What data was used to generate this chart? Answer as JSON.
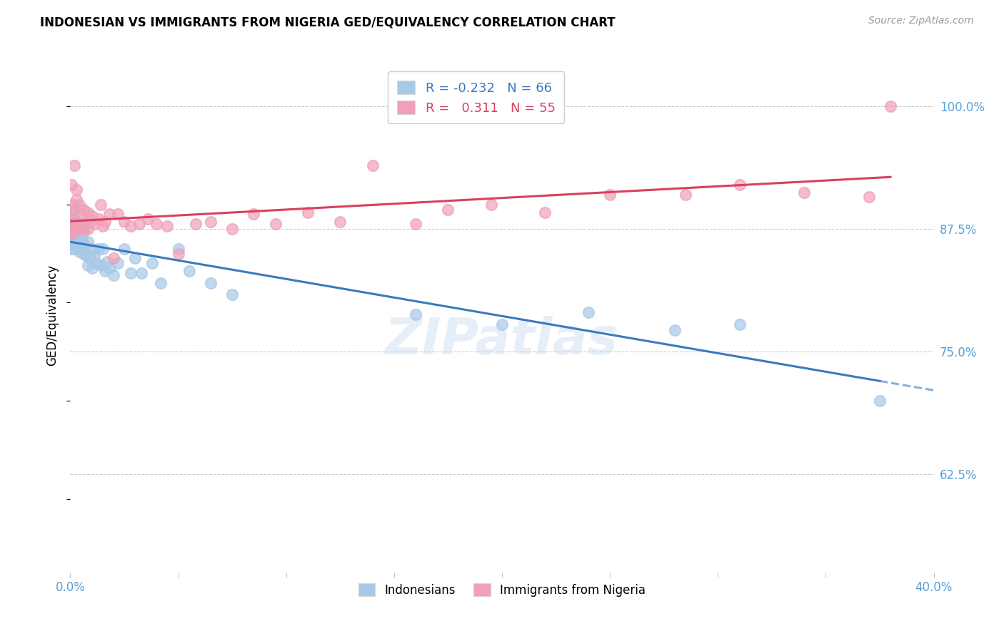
{
  "title": "INDONESIAN VS IMMIGRANTS FROM NIGERIA GED/EQUIVALENCY CORRELATION CHART",
  "source": "Source: ZipAtlas.com",
  "ylabel": "GED/Equivalency",
  "ytick_labels": [
    "100.0%",
    "87.5%",
    "75.0%",
    "62.5%"
  ],
  "ytick_values": [
    1.0,
    0.875,
    0.75,
    0.625
  ],
  "xmin": 0.0,
  "xmax": 0.4,
  "ymin": 0.525,
  "ymax": 1.05,
  "legend_r_blue": "-0.232",
  "legend_n_blue": "66",
  "legend_r_pink": "0.311",
  "legend_n_pink": "55",
  "blue_color": "#a8c8e8",
  "pink_color": "#f0a0b8",
  "blue_line_color": "#3a7abf",
  "pink_line_color": "#d94060",
  "indonesians_label": "Indonesians",
  "nigeria_label": "Immigrants from Nigeria",
  "blue_scatter_x": [
    0.0005,
    0.0005,
    0.0005,
    0.0005,
    0.0005,
    0.0008,
    0.001,
    0.001,
    0.001,
    0.001,
    0.0015,
    0.0015,
    0.002,
    0.002,
    0.002,
    0.002,
    0.0025,
    0.0025,
    0.003,
    0.003,
    0.003,
    0.003,
    0.0035,
    0.004,
    0.004,
    0.004,
    0.004,
    0.005,
    0.005,
    0.005,
    0.006,
    0.006,
    0.006,
    0.007,
    0.007,
    0.008,
    0.008,
    0.009,
    0.01,
    0.01,
    0.011,
    0.012,
    0.013,
    0.014,
    0.015,
    0.016,
    0.017,
    0.018,
    0.02,
    0.022,
    0.025,
    0.028,
    0.03,
    0.033,
    0.038,
    0.042,
    0.05,
    0.055,
    0.065,
    0.075,
    0.16,
    0.2,
    0.24,
    0.28,
    0.31,
    0.375
  ],
  "blue_scatter_y": [
    0.855,
    0.865,
    0.875,
    0.885,
    0.895,
    0.87,
    0.86,
    0.875,
    0.88,
    0.89,
    0.865,
    0.88,
    0.87,
    0.875,
    0.885,
    0.855,
    0.875,
    0.86,
    0.87,
    0.878,
    0.865,
    0.882,
    0.858,
    0.872,
    0.86,
    0.852,
    0.878,
    0.868,
    0.858,
    0.876,
    0.86,
    0.85,
    0.872,
    0.858,
    0.848,
    0.862,
    0.838,
    0.845,
    0.855,
    0.835,
    0.848,
    0.84,
    0.855,
    0.838,
    0.855,
    0.832,
    0.842,
    0.835,
    0.828,
    0.84,
    0.855,
    0.83,
    0.845,
    0.83,
    0.84,
    0.82,
    0.855,
    0.832,
    0.82,
    0.808,
    0.788,
    0.778,
    0.79,
    0.772,
    0.778,
    0.7
  ],
  "pink_scatter_x": [
    0.0005,
    0.0005,
    0.0008,
    0.001,
    0.001,
    0.0015,
    0.002,
    0.002,
    0.003,
    0.003,
    0.003,
    0.004,
    0.004,
    0.005,
    0.005,
    0.006,
    0.006,
    0.007,
    0.008,
    0.008,
    0.009,
    0.01,
    0.011,
    0.013,
    0.014,
    0.015,
    0.016,
    0.018,
    0.02,
    0.022,
    0.025,
    0.028,
    0.032,
    0.036,
    0.04,
    0.045,
    0.05,
    0.058,
    0.065,
    0.075,
    0.085,
    0.095,
    0.11,
    0.125,
    0.14,
    0.16,
    0.175,
    0.195,
    0.22,
    0.25,
    0.285,
    0.31,
    0.34,
    0.37,
    0.38
  ],
  "pink_scatter_y": [
    0.87,
    0.92,
    0.885,
    0.9,
    0.875,
    0.895,
    0.94,
    0.88,
    0.905,
    0.915,
    0.875,
    0.9,
    0.875,
    0.89,
    0.88,
    0.895,
    0.875,
    0.88,
    0.892,
    0.875,
    0.882,
    0.888,
    0.88,
    0.885,
    0.9,
    0.878,
    0.882,
    0.89,
    0.845,
    0.89,
    0.882,
    0.878,
    0.88,
    0.885,
    0.88,
    0.878,
    0.85,
    0.88,
    0.882,
    0.875,
    0.89,
    0.88,
    0.892,
    0.882,
    0.94,
    0.88,
    0.895,
    0.9,
    0.892,
    0.91,
    0.91,
    0.92,
    0.912,
    0.908,
    1.0
  ]
}
